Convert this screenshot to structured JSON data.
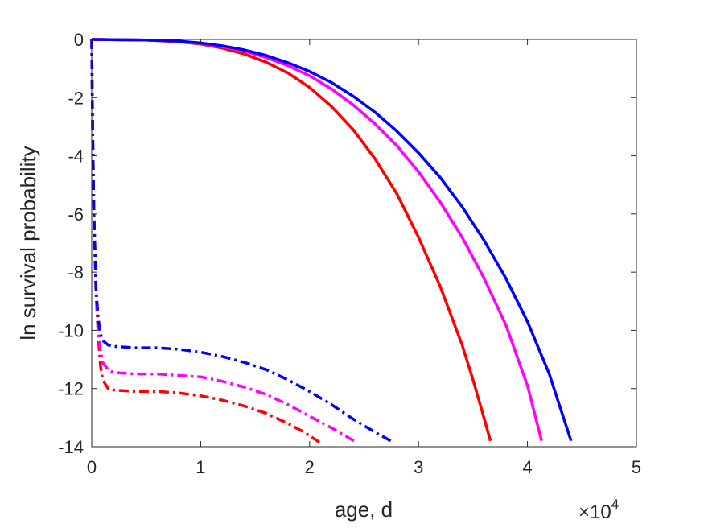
{
  "chart_data": {
    "type": "line",
    "title": "",
    "xlabel": "age, d",
    "ylabel": "ln survival probability",
    "x_exponent_label": {
      "base": "×10",
      "power": "4"
    },
    "x_ticks": [
      "0",
      "1",
      "2",
      "3",
      "4",
      "5"
    ],
    "y_ticks": [
      "0",
      "-2",
      "-4",
      "-6",
      "-8",
      "-10",
      "-12",
      "-14"
    ],
    "xlim": [
      0,
      50000
    ],
    "ylim": [
      -14,
      0
    ],
    "grid": false,
    "legend": "none",
    "series": [
      {
        "color": "#ff0000",
        "style": "solid",
        "x": [
          0,
          5000,
          8000,
          10000,
          12000,
          14000,
          16000,
          18000,
          20000,
          22000,
          24000,
          26000,
          28000,
          30000,
          32000,
          34000,
          35000,
          36000,
          36600
        ],
        "y": [
          0,
          -0.02,
          -0.08,
          -0.16,
          -0.3,
          -0.5,
          -0.78,
          -1.15,
          -1.65,
          -2.3,
          -3.1,
          -4.1,
          -5.3,
          -6.8,
          -8.5,
          -10.5,
          -11.7,
          -13.0,
          -13.8
        ]
      },
      {
        "color": "#ff00ff",
        "style": "solid",
        "x": [
          0,
          5000,
          8000,
          10000,
          12000,
          14000,
          16000,
          18000,
          20000,
          22000,
          24000,
          26000,
          28000,
          30000,
          32000,
          34000,
          36000,
          38000,
          40000,
          41300
        ],
        "y": [
          0,
          -0.02,
          -0.07,
          -0.14,
          -0.25,
          -0.4,
          -0.62,
          -0.9,
          -1.25,
          -1.7,
          -2.25,
          -2.9,
          -3.65,
          -4.55,
          -5.6,
          -6.8,
          -8.2,
          -9.8,
          -11.9,
          -13.8
        ]
      },
      {
        "color": "#0000ff",
        "style": "solid",
        "x": [
          0,
          5000,
          8000,
          10000,
          12000,
          14000,
          16000,
          18000,
          20000,
          22000,
          24000,
          26000,
          28000,
          30000,
          32000,
          34000,
          36000,
          38000,
          40000,
          42000,
          44000
        ],
        "y": [
          0,
          -0.02,
          -0.06,
          -0.12,
          -0.22,
          -0.36,
          -0.55,
          -0.8,
          -1.1,
          -1.48,
          -1.95,
          -2.5,
          -3.15,
          -3.9,
          -4.75,
          -5.75,
          -6.9,
          -8.2,
          -9.7,
          -11.5,
          -13.8
        ]
      },
      {
        "color": "#ff0000",
        "style": "dashdot",
        "x": [
          0,
          80,
          200,
          400,
          600,
          800,
          1000,
          1500,
          2000,
          4000,
          6000,
          8000,
          10000,
          12000,
          14000,
          16000,
          18000,
          19500,
          20900
        ],
        "y": [
          0,
          -3.0,
          -6.0,
          -8.8,
          -10.2,
          -11.2,
          -11.7,
          -12.0,
          -12.05,
          -12.1,
          -12.1,
          -12.15,
          -12.25,
          -12.4,
          -12.6,
          -12.85,
          -13.2,
          -13.5,
          -13.85
        ]
      },
      {
        "color": "#ff00ff",
        "style": "dashdot",
        "x": [
          0,
          80,
          200,
          400,
          600,
          800,
          1000,
          1500,
          2000,
          4000,
          6000,
          8000,
          10000,
          12000,
          14000,
          16000,
          18000,
          20000,
          22000,
          24300
        ],
        "y": [
          0,
          -3.0,
          -6.0,
          -8.7,
          -9.9,
          -10.7,
          -11.1,
          -11.35,
          -11.45,
          -11.5,
          -11.5,
          -11.55,
          -11.6,
          -11.75,
          -11.95,
          -12.2,
          -12.55,
          -12.95,
          -13.35,
          -13.85
        ]
      },
      {
        "color": "#0000ff",
        "style": "dashdot",
        "x": [
          0,
          80,
          200,
          400,
          600,
          800,
          1000,
          1500,
          2000,
          4000,
          6000,
          8000,
          10000,
          12000,
          14000,
          16000,
          18000,
          20000,
          22000,
          24000,
          26000,
          27700
        ],
        "y": [
          0,
          -3.0,
          -6.0,
          -8.6,
          -9.6,
          -10.1,
          -10.35,
          -10.5,
          -10.55,
          -10.6,
          -10.6,
          -10.65,
          -10.75,
          -10.9,
          -11.1,
          -11.35,
          -11.7,
          -12.1,
          -12.55,
          -13.05,
          -13.5,
          -13.85
        ]
      }
    ]
  }
}
